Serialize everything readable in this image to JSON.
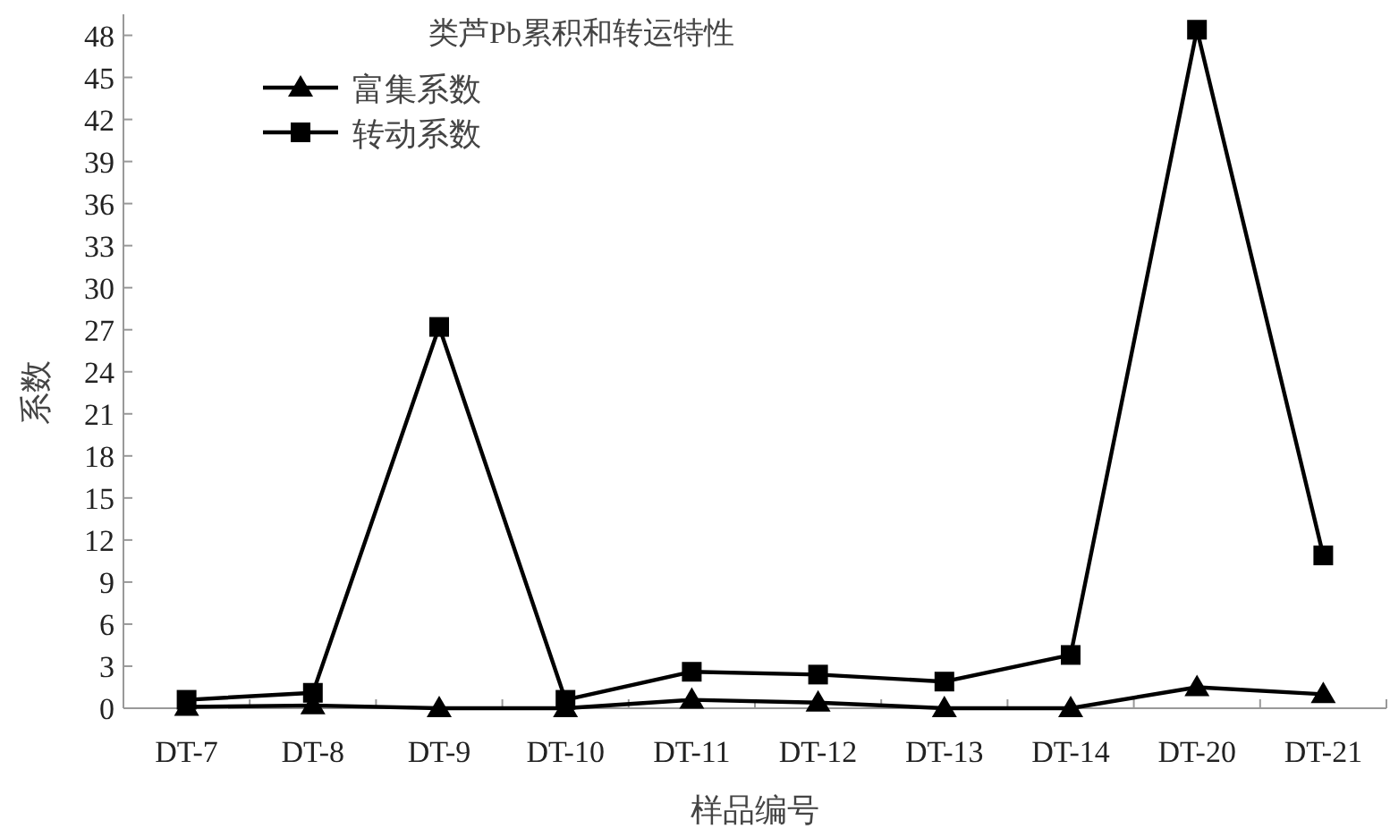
{
  "chart_data": {
    "type": "line",
    "title": "类芦Pb累积和转运特性",
    "xlabel": "样品编号",
    "ylabel": "系数",
    "categories": [
      "DT-7",
      "DT-8",
      "DT-9",
      "DT-10",
      "DT-11",
      "DT-12",
      "DT-13",
      "DT-14",
      "DT-20",
      "DT-21"
    ],
    "series": [
      {
        "name": "富集系数",
        "color": "#000000",
        "marker": "triangle",
        "values": [
          0.1,
          0.2,
          0,
          0,
          0.6,
          0.4,
          0,
          0,
          1.5,
          1.0
        ]
      },
      {
        "name": "转动系数",
        "color": "#000000",
        "marker": "square",
        "values": [
          0.6,
          1.1,
          27.2,
          0.6,
          2.6,
          2.4,
          1.9,
          3.8,
          48.4,
          10.9
        ]
      }
    ],
    "ylim": [
      0,
      49.5
    ],
    "yticks": [
      0,
      3,
      6,
      9,
      12,
      15,
      18,
      21,
      24,
      27,
      30,
      33,
      36,
      39,
      42,
      45,
      48
    ],
    "grid": false,
    "legend": "top left",
    "line_style": "solid"
  }
}
